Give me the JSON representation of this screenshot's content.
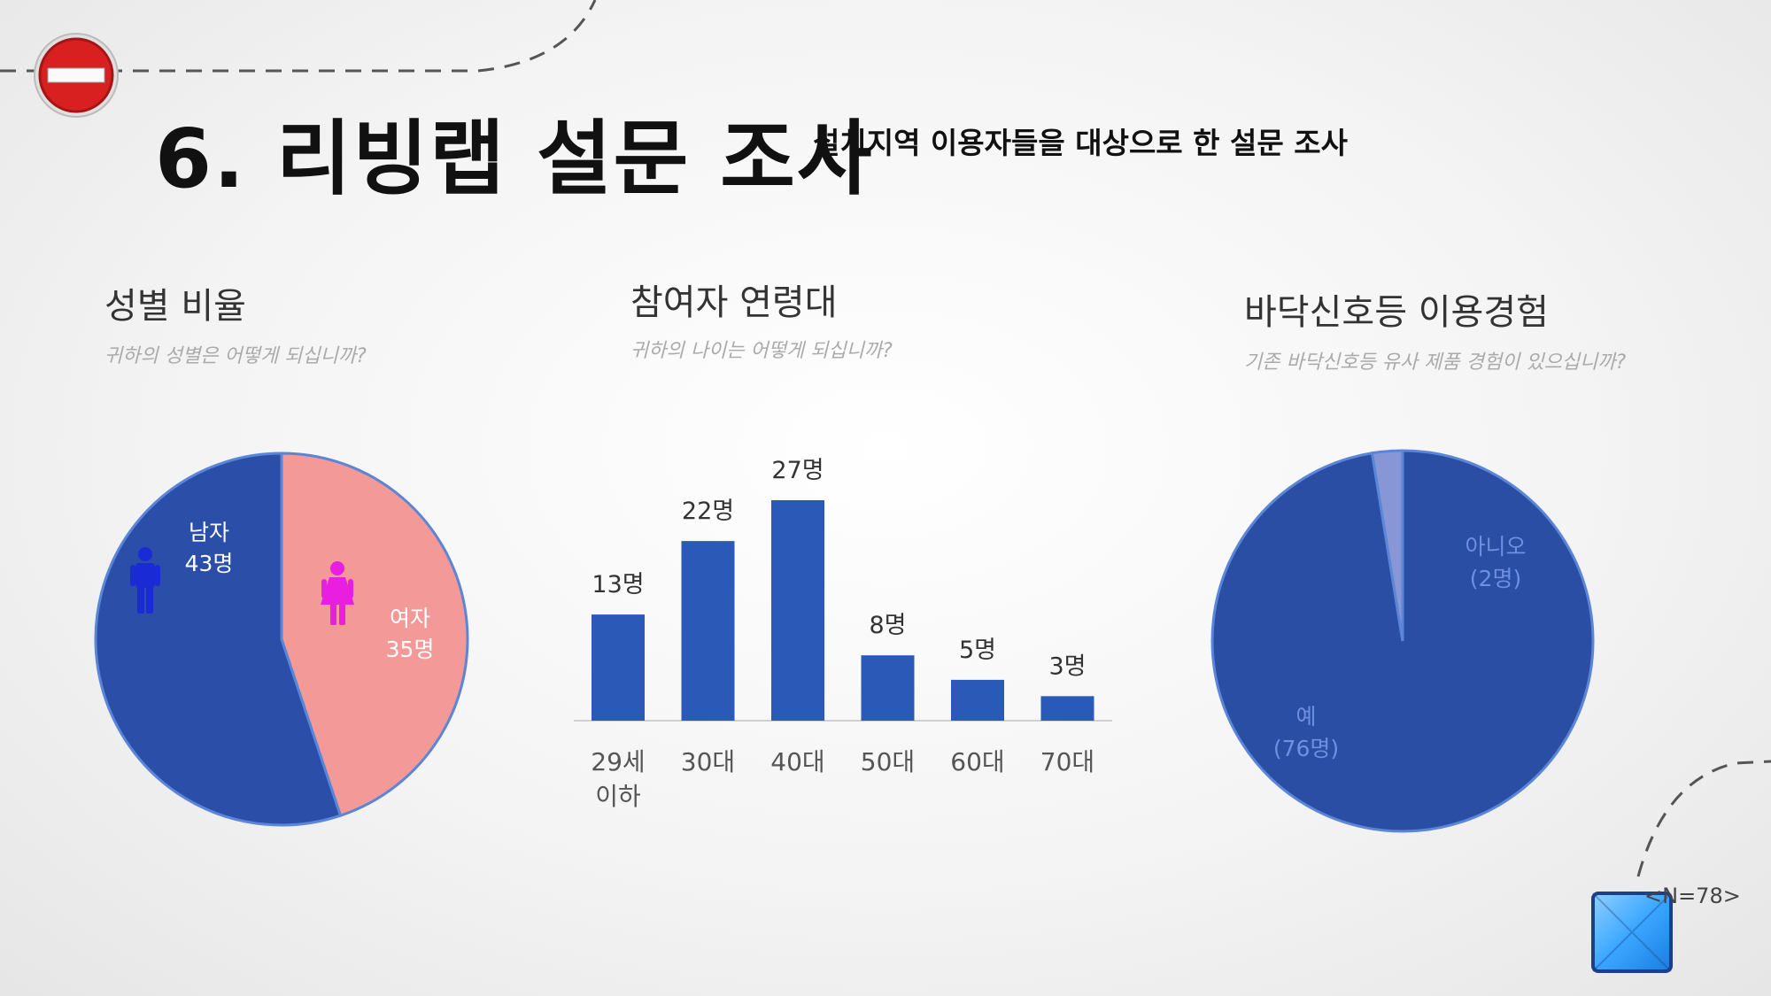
{
  "header": {
    "title": "6. 리빙랩 설문 조사",
    "subtitle": "설치지역 이용자들을 대상으로 한 설문 조사"
  },
  "sections": [
    {
      "title": "성별 비율",
      "question": "귀하의 성별은 어떻게 되십니까?"
    },
    {
      "title": "참여자 연령대",
      "question": "귀하의 나이는 어떻게 되십니까?"
    },
    {
      "title": "바닥신호등 이용경험",
      "question": "기존 바닥신호등 유사 제품 경험이 있으십니까?"
    }
  ],
  "footer": {
    "sample_size": "<N=78>"
  },
  "colors": {
    "male": "#2b4fa8",
    "female": "#f39a98",
    "bar": "#2b59b8",
    "yes": "#2a4ea4",
    "no": "#8797d6",
    "male_icon": "#1a2bd6",
    "female_icon": "#e81fe0",
    "outline": "#5b86d8"
  },
  "chart_data": [
    {
      "type": "pie",
      "title": "성별 비율",
      "labels": [
        "남자",
        "여자"
      ],
      "values": [
        43,
        35
      ],
      "value_labels": [
        "43명",
        "35명"
      ]
    },
    {
      "type": "bar",
      "title": "참여자 연령대",
      "categories": [
        "29세 이하",
        "30대",
        "40대",
        "50대",
        "60대",
        "70대"
      ],
      "category_lines": [
        [
          "29세",
          "이하"
        ],
        [
          "30대"
        ],
        [
          "40대"
        ],
        [
          "50대"
        ],
        [
          "60대"
        ],
        [
          "70대"
        ]
      ],
      "values": [
        13,
        22,
        27,
        8,
        5,
        3
      ],
      "value_labels": [
        "13명",
        "22명",
        "27명",
        "8명",
        "5명",
        "3명"
      ],
      "ylim": [
        0,
        27
      ],
      "grid": false
    },
    {
      "type": "pie",
      "title": "바닥신호등 이용경험",
      "labels": [
        "아니오",
        "예"
      ],
      "values": [
        2,
        76
      ],
      "value_labels": [
        "(2명)",
        "(76명)"
      ]
    }
  ]
}
